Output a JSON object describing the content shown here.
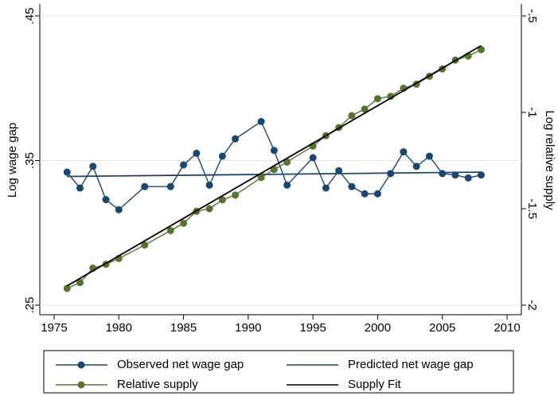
{
  "chart_data": {
    "type": "line",
    "y_label": "Log wage gap",
    "y2_label": "Log relative supply",
    "xlim": [
      1975,
      2010
    ],
    "xticks": [
      1975,
      1980,
      1985,
      1990,
      1995,
      2000,
      2005,
      2010
    ],
    "ylim": [
      0.25,
      0.45
    ],
    "yticks": [
      {
        "value": 0.25,
        "label": ".25"
      },
      {
        "value": 0.35,
        "label": ".35"
      },
      {
        "value": 0.45,
        "label": ".45"
      }
    ],
    "y2lim": [
      -2,
      -0.5
    ],
    "y2ticks": [
      -2,
      {
        "value": -1.5,
        "label": "-1.5"
      },
      -1,
      {
        "value": -0.5,
        "label": "-.5"
      }
    ],
    "grid": true,
    "legend_position": "bottom",
    "series": [
      {
        "name": "Observed net wage gap",
        "color": "#1a476f",
        "markers": true,
        "x": [
          1976,
          1977,
          1978,
          1979,
          1980,
          1982,
          1984,
          1985,
          1986,
          1987,
          1988,
          1989,
          1991,
          1992,
          1993,
          1995,
          1996,
          1997,
          1998,
          1999,
          2000,
          2001,
          2002,
          2003,
          2004,
          2005,
          2006,
          2007,
          2008
        ],
        "values": [
          0.342,
          0.331,
          0.346,
          0.323,
          0.316,
          0.332,
          0.332,
          0.347,
          0.355,
          0.333,
          0.353,
          0.365,
          0.377,
          0.357,
          0.333,
          0.352,
          0.331,
          0.343,
          0.332,
          0.327,
          0.327,
          0.341,
          0.356,
          0.346,
          0.353,
          0.341,
          0.34,
          0.338,
          0.34
        ]
      },
      {
        "name": "Predicted net wage gap",
        "color": "#1a476f",
        "markers": false,
        "x": [
          1976,
          2008
        ],
        "values": [
          0.339,
          0.342
        ]
      },
      {
        "name": "Relative supply",
        "color": "#55752f",
        "markers": true,
        "axis": "y2",
        "x": [
          1976,
          1977,
          1978,
          1979,
          1980,
          1982,
          1984,
          1985,
          1986,
          1987,
          1988,
          1989,
          1991,
          1992,
          1993,
          1995,
          1996,
          1997,
          1998,
          1999,
          2000,
          2001,
          2002,
          2003,
          2004,
          2005,
          2006,
          2007,
          2008
        ],
        "values": [
          -1.913,
          -1.883,
          -1.808,
          -1.788,
          -1.758,
          -1.688,
          -1.613,
          -1.575,
          -1.513,
          -1.5,
          -1.454,
          -1.429,
          -1.338,
          -1.296,
          -1.258,
          -1.175,
          -1.121,
          -1.079,
          -1.017,
          -0.983,
          -0.929,
          -0.917,
          -0.875,
          -0.854,
          -0.813,
          -0.775,
          -0.729,
          -0.708,
          -0.675
        ]
      },
      {
        "name": "Supply Fit",
        "color": "#000000",
        "markers": false,
        "axis": "y2",
        "x": [
          1976,
          2008
        ],
        "values": [
          -1.9,
          -0.654
        ]
      }
    ]
  }
}
